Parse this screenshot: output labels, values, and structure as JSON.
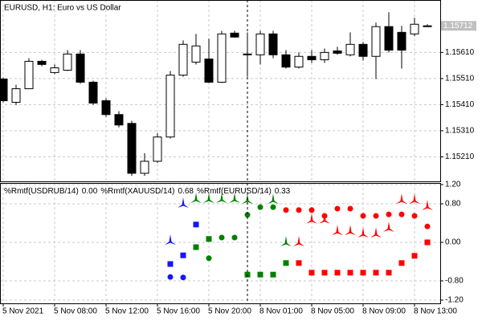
{
  "chart_data": [
    {
      "type": "candlestick",
      "title": "EURUSD, H1:  Euro vs US Dollar",
      "open": [
        1.15508,
        1.15419,
        1.15471,
        1.15576,
        1.15533,
        1.15542,
        1.15604,
        1.15496,
        1.15425,
        1.15372,
        1.15338,
        1.15147,
        1.15193,
        1.15286,
        1.15523,
        1.15573,
        1.15585,
        1.15496,
        1.15684,
        1.15601,
        1.15601,
        1.15681,
        1.15601,
        1.15554,
        1.15595,
        1.15582,
        1.15616,
        1.15601,
        1.15641,
        1.15595,
        1.15709,
        1.15687,
        1.15681,
        1.15712
      ],
      "high": [
        1.15514,
        1.15486,
        1.15588,
        1.15582,
        1.15564,
        1.15619,
        1.15619,
        1.15502,
        1.15434,
        1.15385,
        1.15348,
        1.15224,
        1.15301,
        1.15539,
        1.15656,
        1.15681,
        1.15663,
        1.15693,
        1.15693,
        1.15687,
        1.15693,
        1.15693,
        1.15619,
        1.1561,
        1.15619,
        1.15625,
        1.15632,
        1.15687,
        1.1565,
        1.15724,
        1.15764,
        1.15712,
        1.15743,
        1.15718
      ],
      "low": [
        1.15419,
        1.15409,
        1.15471,
        1.15557,
        1.15527,
        1.15539,
        1.1549,
        1.15409,
        1.15363,
        1.15323,
        1.15137,
        1.15137,
        1.15187,
        1.1528,
        1.15517,
        1.15564,
        1.15493,
        1.15493,
        1.15666,
        1.15517,
        1.15564,
        1.15588,
        1.15548,
        1.15548,
        1.1557,
        1.1557,
        1.15601,
        1.15595,
        1.15579,
        1.15508,
        1.1561,
        1.15548,
        1.15672,
        1.15709
      ],
      "close": [
        1.15425,
        1.15471,
        1.15576,
        1.15564,
        1.15551,
        1.15604,
        1.15496,
        1.15416,
        1.15372,
        1.15332,
        1.15147,
        1.15193,
        1.15286,
        1.15523,
        1.15641,
        1.15635,
        1.15496,
        1.15681,
        1.15669,
        1.15604,
        1.15681,
        1.15601,
        1.15554,
        1.15595,
        1.15582,
        1.1561,
        1.15607,
        1.15641,
        1.15595,
        1.15709,
        1.15619,
        1.15619,
        1.15718,
        1.15712
      ],
      "up_color": "#ffffff",
      "down_color": "#000000",
      "ylim": [
        1.15116,
        1.15811
      ],
      "yticks": [
        {
          "value": 1.1561,
          "label": "1.15610"
        },
        {
          "value": 1.1551,
          "label": "1.15510"
        },
        {
          "value": 1.1541,
          "label": "1.15410"
        },
        {
          "value": 1.1531,
          "label": "1.15310"
        },
        {
          "value": 1.1521,
          "label": "1.15210"
        }
      ],
      "current_price": {
        "value": 1.15712,
        "label": "1.15712"
      },
      "grid": true
    },
    {
      "type": "indicator",
      "categories": [
        "5 Nov 2021",
        null,
        null,
        null,
        "5 Nov 08:00",
        null,
        null,
        null,
        "5 Nov 12:00",
        null,
        null,
        null,
        "5 Nov 16:00",
        null,
        null,
        null,
        "5 Nov 20:00",
        null,
        null,
        null,
        "8 Nov 01:00",
        null,
        null,
        null,
        "8 Nov 05:00",
        null,
        null,
        null,
        "8 Nov 09:00",
        null,
        null,
        null,
        "8 Nov 13:00",
        null
      ],
      "series": [
        {
          "name": "%Rmtf(USDRUB/14)",
          "last": {
            "value": 0,
            "label": "0.00"
          },
          "color": "#1515ff",
          "squares": [
            null,
            null,
            null,
            null,
            null,
            null,
            null,
            null,
            null,
            null,
            null,
            null,
            null,
            -0.45,
            -0.27,
            0.37,
            null,
            null,
            null,
            null,
            null,
            null,
            null,
            null,
            null,
            null,
            null,
            null,
            null,
            null,
            null,
            null,
            null,
            null
          ],
          "dots": [
            null,
            null,
            null,
            null,
            null,
            null,
            null,
            null,
            null,
            null,
            null,
            null,
            null,
            -0.72,
            -0.73,
            null,
            null,
            null,
            null,
            null,
            null,
            null,
            null,
            null,
            null,
            null,
            null,
            null,
            null,
            null,
            null,
            null,
            null,
            null
          ],
          "arrows": [
            null,
            null,
            null,
            null,
            null,
            null,
            null,
            null,
            null,
            null,
            null,
            null,
            null,
            0.03,
            0.8,
            null,
            null,
            null,
            null,
            null,
            null,
            null,
            null,
            null,
            null,
            null,
            null,
            null,
            null,
            null,
            null,
            null,
            null,
            null
          ]
        },
        {
          "name": "%Rmtf(XAUUSD/14)",
          "last": {
            "value": 0.68,
            "label": "0.68"
          },
          "color": "#008000",
          "squares": [
            null,
            null,
            null,
            null,
            null,
            null,
            null,
            null,
            null,
            null,
            null,
            null,
            null,
            null,
            null,
            -0.1,
            0.07,
            null,
            null,
            -0.67,
            -0.67,
            -0.67,
            -0.43,
            null,
            null,
            null,
            null,
            null,
            null,
            null,
            null,
            null,
            null,
            null
          ],
          "dots": [
            null,
            null,
            null,
            null,
            null,
            null,
            null,
            null,
            null,
            null,
            null,
            null,
            null,
            null,
            null,
            null,
            -0.33,
            0.1,
            0.1,
            0.57,
            0.73,
            0.73,
            null,
            null,
            null,
            null,
            null,
            null,
            null,
            null,
            null,
            null,
            null,
            null
          ],
          "arrows": [
            null,
            null,
            null,
            null,
            null,
            null,
            null,
            null,
            null,
            null,
            null,
            null,
            null,
            null,
            null,
            0.9,
            0.9,
            0.9,
            0.9,
            0.88,
            null,
            0.88,
            0,
            null,
            null,
            null,
            null,
            null,
            null,
            null,
            null,
            null,
            null,
            null
          ]
        },
        {
          "name": "%Rmtf(EURUSD/14)",
          "last": {
            "value": 0.33,
            "label": "0.33"
          },
          "color": "#ff0000",
          "squares": [
            null,
            null,
            null,
            null,
            null,
            null,
            null,
            null,
            null,
            null,
            null,
            null,
            null,
            null,
            null,
            null,
            null,
            null,
            null,
            null,
            null,
            null,
            null,
            -0.43,
            -0.63,
            -0.63,
            -0.63,
            -0.63,
            -0.63,
            -0.63,
            -0.63,
            -0.43,
            -0.28,
            0
          ],
          "dots": [
            null,
            null,
            null,
            null,
            null,
            null,
            null,
            null,
            null,
            null,
            null,
            null,
            null,
            null,
            null,
            null,
            null,
            null,
            null,
            null,
            null,
            null,
            0.67,
            0.67,
            0.67,
            0.55,
            0.7,
            0.7,
            0.55,
            0.55,
            0.58,
            0.58,
            0.55,
            0.33
          ],
          "arrows": [
            null,
            null,
            null,
            null,
            null,
            null,
            null,
            null,
            null,
            null,
            null,
            null,
            null,
            null,
            null,
            null,
            null,
            null,
            null,
            null,
            null,
            null,
            null,
            0,
            0.47,
            0.47,
            0.23,
            0.23,
            0.18,
            0.18,
            0.3,
            0.88,
            0.88,
            0.75
          ]
        }
      ],
      "ylim": [
        -1.267,
        1.233
      ],
      "yticks": [
        {
          "value": 1.2,
          "label": "1.20"
        },
        {
          "value": 0.8,
          "label": "0.80"
        },
        {
          "value": 0,
          "label": "0.00"
        },
        {
          "value": -0.8,
          "label": "-0.80"
        },
        {
          "value": -1.2,
          "label": "-1.20"
        }
      ],
      "grid": true
    }
  ]
}
